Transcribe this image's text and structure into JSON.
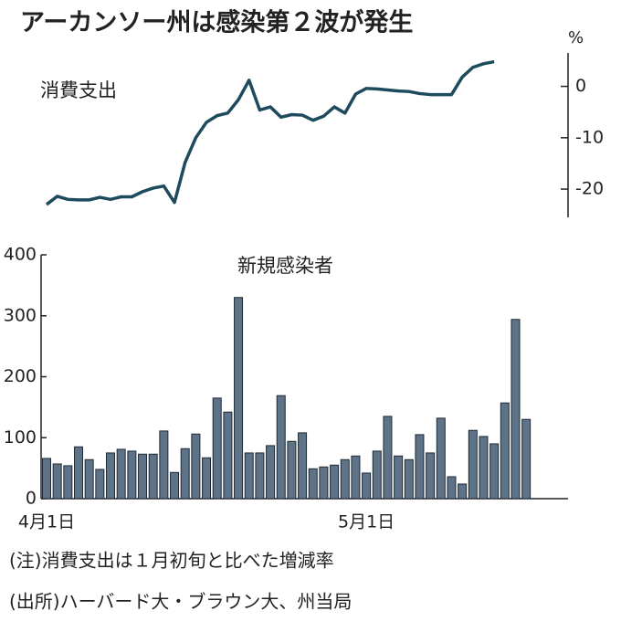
{
  "title": "アーカンソー州は感染第２波が発生",
  "unit": "%",
  "chart_data": [
    {
      "type": "line",
      "title": "消費支出",
      "color": "#1d4a5c",
      "values": [
        -23.0,
        -21.4,
        -22.0,
        -22.1,
        -22.1,
        -21.6,
        -22.0,
        -21.5,
        -21.5,
        -20.5,
        -19.8,
        -19.4,
        -22.6,
        -14.8,
        -10.0,
        -7.0,
        -5.7,
        -5.2,
        -2.6,
        1.2,
        -4.6,
        -4.0,
        -6.0,
        -5.5,
        -5.6,
        -6.6,
        -5.8,
        -4.0,
        -5.2,
        -1.5,
        -0.4,
        -0.5,
        -0.7,
        -0.9,
        -1.0,
        -1.4,
        -1.6,
        -1.6,
        -1.6,
        1.8,
        3.7,
        4.4,
        4.8
      ],
      "ylim": [
        -25.5,
        6.5
      ],
      "yticks": [
        0,
        -10,
        -20
      ]
    },
    {
      "type": "bar",
      "title": "新規感染者",
      "color": "#5e7387",
      "categories": [
        "4月1日",
        null,
        null,
        null,
        null,
        null,
        null,
        null,
        null,
        null,
        null,
        null,
        null,
        null,
        null,
        null,
        null,
        null,
        null,
        null,
        null,
        null,
        null,
        null,
        null,
        null,
        null,
        null,
        null,
        null,
        "5月1日",
        null,
        null,
        null,
        null,
        null,
        null,
        null,
        null,
        null,
        null,
        null,
        null,
        null,
        null,
        null
      ],
      "values": [
        66,
        57,
        54,
        85,
        64,
        48,
        75,
        81,
        78,
        73,
        73,
        111,
        43,
        82,
        106,
        67,
        165,
        142,
        330,
        75,
        75,
        87,
        169,
        94,
        108,
        49,
        52,
        55,
        64,
        70,
        42,
        78,
        135,
        70,
        64,
        105,
        75,
        132,
        36,
        24,
        112,
        102,
        90,
        157,
        294,
        130
      ],
      "ylim": [
        0,
        400
      ],
      "yticks": [
        0,
        100,
        200,
        300,
        400
      ]
    }
  ],
  "notes": [
    "(注)消費支出は１月初旬と比べた増減率",
    "(出所)ハーバード大・ブラウン大、州当局"
  ]
}
